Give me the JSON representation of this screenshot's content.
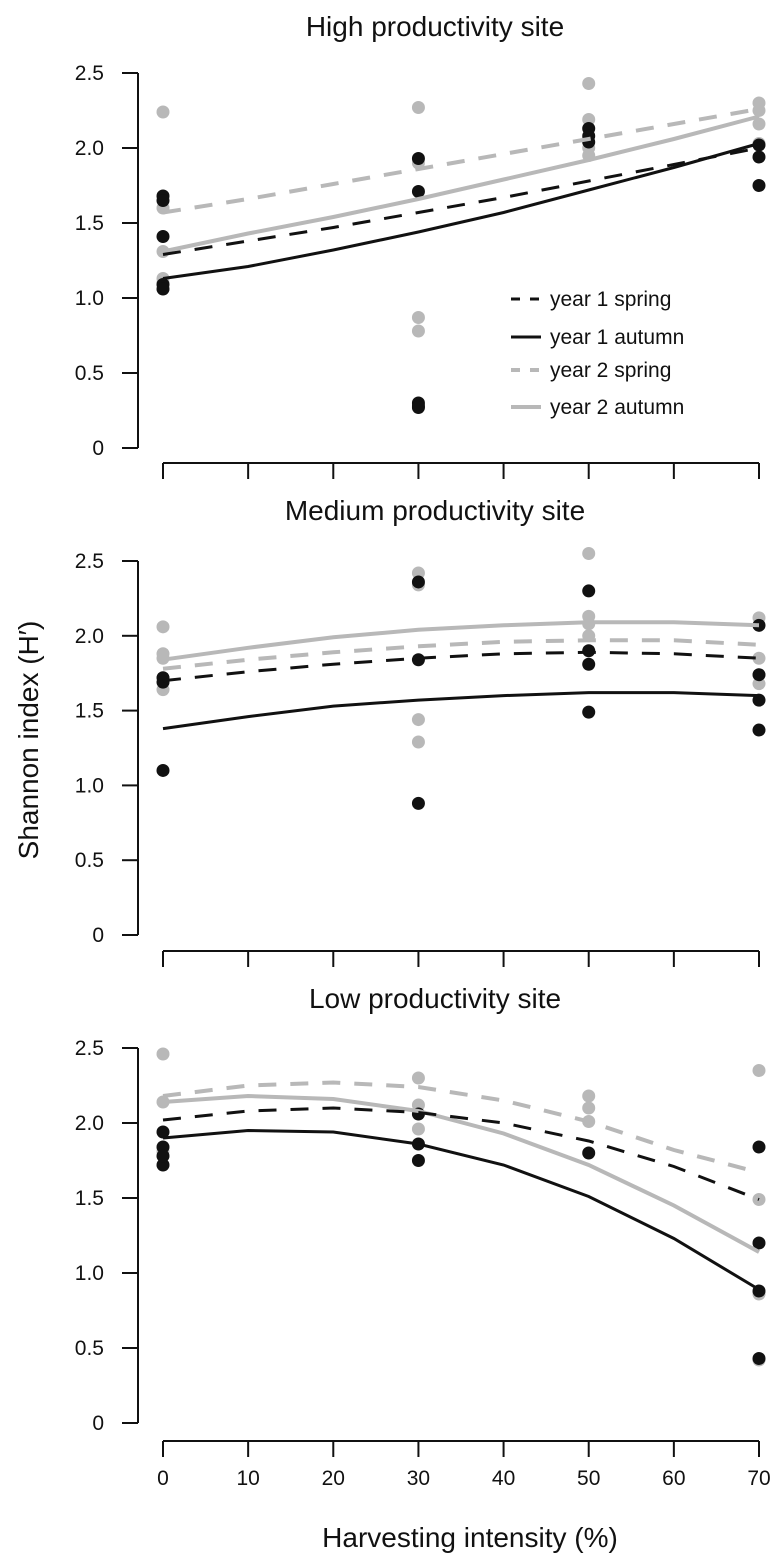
{
  "figure": {
    "ylabel": "Shannon index (H′)",
    "xlabel": "Harvesting intensity (%)",
    "legend": [
      {
        "label": "year 1 spring",
        "color": "#111111",
        "dash": true
      },
      {
        "label": "year 1 autumn",
        "color": "#111111",
        "dash": false
      },
      {
        "label": "year 2 spring",
        "color": "#b8b8b8",
        "dash": true
      },
      {
        "label": "year 2 autumn",
        "color": "#b8b8b8",
        "dash": false
      }
    ],
    "legend_position": "bottom-right of top panel",
    "y_tick_labels": [
      "0",
      "0.5",
      "1.0",
      "1.5",
      "2.0",
      "2.5"
    ],
    "x_tick_labels": [
      "0",
      "10",
      "20",
      "30",
      "40",
      "50",
      "60",
      "70"
    ],
    "colors": {
      "year1": "#111111",
      "year2": "#b8b8b8"
    }
  },
  "chart_data": [
    {
      "type": "scatter",
      "title": "High productivity site",
      "xlim": [
        0,
        70
      ],
      "ylim": [
        0,
        2.5
      ],
      "x_ticks": [
        0,
        10,
        20,
        30,
        40,
        50,
        60,
        70
      ],
      "y_ticks": [
        0,
        0.5,
        1.0,
        1.5,
        2.0,
        2.5
      ],
      "series": [
        {
          "name": "year 1 spring",
          "points": [
            [
              0,
              1.68
            ],
            [
              0,
              1.65
            ],
            [
              0,
              1.41
            ],
            [
              30,
              1.93
            ],
            [
              30,
              1.71
            ],
            [
              30,
              0.3
            ],
            [
              50,
              2.13
            ],
            [
              50,
              2.08
            ],
            [
              70,
              2.02
            ],
            [
              70,
              1.94
            ]
          ],
          "fit": [
            [
              0,
              1.29
            ],
            [
              10,
              1.38
            ],
            [
              20,
              1.47
            ],
            [
              30,
              1.57
            ],
            [
              40,
              1.67
            ],
            [
              50,
              1.78
            ],
            [
              60,
              1.89
            ],
            [
              70,
              2.0
            ]
          ]
        },
        {
          "name": "year 1 autumn",
          "points": [
            [
              0,
              1.09
            ],
            [
              0,
              1.06
            ],
            [
              30,
              0.28
            ],
            [
              30,
              0.27
            ],
            [
              50,
              2.04
            ],
            [
              70,
              1.75
            ]
          ],
          "fit": [
            [
              0,
              1.13
            ],
            [
              10,
              1.21
            ],
            [
              20,
              1.32
            ],
            [
              30,
              1.44
            ],
            [
              40,
              1.57
            ],
            [
              50,
              1.72
            ],
            [
              60,
              1.87
            ],
            [
              70,
              2.03
            ]
          ]
        },
        {
          "name": "year 2 spring",
          "points": [
            [
              0,
              2.24
            ],
            [
              0,
              1.6
            ],
            [
              0,
              1.31
            ],
            [
              30,
              2.27
            ],
            [
              30,
              1.9
            ],
            [
              30,
              0.87
            ],
            [
              50,
              2.43
            ],
            [
              50,
              2.19
            ],
            [
              70,
              2.3
            ],
            [
              70,
              2.25
            ]
          ],
          "fit": [
            [
              0,
              1.57
            ],
            [
              10,
              1.66
            ],
            [
              20,
              1.76
            ],
            [
              30,
              1.86
            ],
            [
              40,
              1.96
            ],
            [
              50,
              2.06
            ],
            [
              60,
              2.16
            ],
            [
              70,
              2.26
            ]
          ]
        },
        {
          "name": "year 2 autumn",
          "points": [
            [
              0,
              1.13
            ],
            [
              0,
              1.1
            ],
            [
              30,
              0.78
            ],
            [
              50,
              1.95
            ],
            [
              50,
              2.0
            ],
            [
              70,
              2.16
            ],
            [
              70,
              2.03
            ]
          ],
          "fit": [
            [
              0,
              1.31
            ],
            [
              10,
              1.43
            ],
            [
              20,
              1.54
            ],
            [
              30,
              1.66
            ],
            [
              40,
              1.79
            ],
            [
              50,
              1.92
            ],
            [
              60,
              2.06
            ],
            [
              70,
              2.21
            ]
          ]
        }
      ]
    },
    {
      "type": "scatter",
      "title": "Medium productivity site",
      "xlim": [
        0,
        70
      ],
      "ylim": [
        0,
        2.5
      ],
      "x_ticks": [
        0,
        10,
        20,
        30,
        40,
        50,
        60,
        70
      ],
      "y_ticks": [
        0,
        0.5,
        1.0,
        1.5,
        2.0,
        2.5
      ],
      "series": [
        {
          "name": "year 1 spring",
          "points": [
            [
              0,
              1.72
            ],
            [
              0,
              1.69
            ],
            [
              30,
              1.84
            ],
            [
              30,
              2.36
            ],
            [
              50,
              2.3
            ],
            [
              50,
              1.9
            ],
            [
              70,
              2.07
            ],
            [
              70,
              1.74
            ]
          ],
          "fit": [
            [
              0,
              1.7
            ],
            [
              10,
              1.76
            ],
            [
              20,
              1.81
            ],
            [
              30,
              1.85
            ],
            [
              40,
              1.88
            ],
            [
              50,
              1.89
            ],
            [
              60,
              1.88
            ],
            [
              70,
              1.85
            ]
          ]
        },
        {
          "name": "year 1 autumn",
          "points": [
            [
              0,
              1.1
            ],
            [
              30,
              0.88
            ],
            [
              50,
              1.81
            ],
            [
              50,
              1.49
            ],
            [
              70,
              1.57
            ],
            [
              70,
              1.37
            ]
          ],
          "fit": [
            [
              0,
              1.38
            ],
            [
              10,
              1.46
            ],
            [
              20,
              1.53
            ],
            [
              30,
              1.57
            ],
            [
              40,
              1.6
            ],
            [
              50,
              1.62
            ],
            [
              60,
              1.62
            ],
            [
              70,
              1.6
            ]
          ]
        },
        {
          "name": "year 2 spring",
          "points": [
            [
              0,
              2.06
            ],
            [
              0,
              1.88
            ],
            [
              0,
              1.85
            ],
            [
              30,
              2.42
            ],
            [
              30,
              2.34
            ],
            [
              30,
              1.44
            ],
            [
              50,
              2.55
            ],
            [
              50,
              2.13
            ],
            [
              50,
              2.08
            ],
            [
              70,
              2.12
            ],
            [
              70,
              1.85
            ]
          ],
          "fit": [
            [
              0,
              1.78
            ],
            [
              10,
              1.84
            ],
            [
              20,
              1.89
            ],
            [
              30,
              1.93
            ],
            [
              40,
              1.96
            ],
            [
              50,
              1.97
            ],
            [
              60,
              1.97
            ],
            [
              70,
              1.94
            ]
          ]
        },
        {
          "name": "year 2 autumn",
          "points": [
            [
              0,
              1.64
            ],
            [
              30,
              1.29
            ],
            [
              50,
              2.0
            ],
            [
              70,
              1.68
            ],
            [
              70,
              1.74
            ]
          ],
          "fit": [
            [
              0,
              1.84
            ],
            [
              10,
              1.92
            ],
            [
              20,
              1.99
            ],
            [
              30,
              2.04
            ],
            [
              40,
              2.07
            ],
            [
              50,
              2.09
            ],
            [
              60,
              2.09
            ],
            [
              70,
              2.07
            ]
          ]
        }
      ]
    },
    {
      "type": "scatter",
      "title": "Low productivity site",
      "xlim": [
        0,
        70
      ],
      "ylim": [
        0,
        2.5
      ],
      "x_ticks": [
        0,
        10,
        20,
        30,
        40,
        50,
        60,
        70
      ],
      "y_ticks": [
        0,
        0.5,
        1.0,
        1.5,
        2.0,
        2.5
      ],
      "series": [
        {
          "name": "year 1 spring",
          "points": [
            [
              0,
              1.94
            ],
            [
              0,
              1.84
            ],
            [
              30,
              2.06
            ],
            [
              50,
              1.8
            ],
            [
              70,
              1.84
            ],
            [
              70,
              1.2
            ]
          ],
          "fit": [
            [
              0,
              2.02
            ],
            [
              10,
              2.08
            ],
            [
              20,
              2.1
            ],
            [
              30,
              2.07
            ],
            [
              40,
              2.0
            ],
            [
              50,
              1.88
            ],
            [
              60,
              1.71
            ],
            [
              70,
              1.49
            ]
          ]
        },
        {
          "name": "year 1 autumn",
          "points": [
            [
              0,
              1.72
            ],
            [
              0,
              1.78
            ],
            [
              30,
              1.86
            ],
            [
              30,
              1.75
            ],
            [
              70,
              0.88
            ],
            [
              70,
              0.43
            ]
          ],
          "fit": [
            [
              0,
              1.9
            ],
            [
              10,
              1.95
            ],
            [
              20,
              1.94
            ],
            [
              30,
              1.86
            ],
            [
              40,
              1.72
            ],
            [
              50,
              1.51
            ],
            [
              60,
              1.23
            ],
            [
              70,
              0.89
            ]
          ]
        },
        {
          "name": "year 2 spring",
          "points": [
            [
              0,
              2.46
            ],
            [
              0,
              2.14
            ],
            [
              30,
              2.3
            ],
            [
              30,
              2.12
            ],
            [
              50,
              2.18
            ],
            [
              50,
              2.1
            ],
            [
              70,
              2.35
            ],
            [
              70,
              1.49
            ]
          ],
          "fit": [
            [
              0,
              2.18
            ],
            [
              10,
              2.25
            ],
            [
              20,
              2.27
            ],
            [
              30,
              2.24
            ],
            [
              40,
              2.15
            ],
            [
              50,
              2.01
            ],
            [
              60,
              1.82
            ],
            [
              70,
              1.67
            ]
          ]
        },
        {
          "name": "year 2 autumn",
          "points": [
            [
              0,
              1.81
            ],
            [
              30,
              1.96
            ],
            [
              50,
              2.01
            ],
            [
              70,
              0.86
            ],
            [
              70,
              0.42
            ]
          ],
          "fit": [
            [
              0,
              2.14
            ],
            [
              10,
              2.18
            ],
            [
              20,
              2.16
            ],
            [
              30,
              2.08
            ],
            [
              40,
              1.93
            ],
            [
              50,
              1.72
            ],
            [
              60,
              1.45
            ],
            [
              70,
              1.14
            ]
          ]
        }
      ]
    }
  ]
}
